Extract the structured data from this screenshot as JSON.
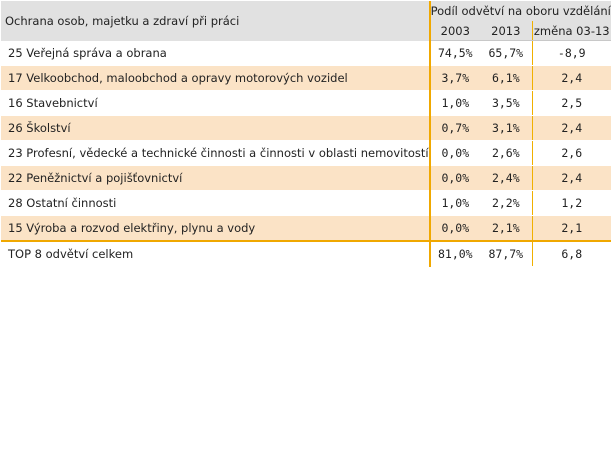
{
  "table": {
    "title": "Ochrana osob, majetku a zdraví při práci",
    "group_header": "Podíl odvětví na oboru vzdělání",
    "columns": [
      "2003",
      "2013",
      "změna 03-13"
    ],
    "rows": [
      {
        "label": "25 Veřejná správa a obrana",
        "v2003": "74,5%",
        "v2013": "65,7%",
        "change": "-8,9"
      },
      {
        "label": "17 Velkoobchod, maloobchod a opravy motorových vozidel",
        "v2003": "3,7%",
        "v2013": "6,1%",
        "change": "2,4"
      },
      {
        "label": "16 Stavebnictví",
        "v2003": "1,0%",
        "v2013": "3,5%",
        "change": "2,5"
      },
      {
        "label": "26 Školství",
        "v2003": "0,7%",
        "v2013": "3,1%",
        "change": "2,4"
      },
      {
        "label": "23 Profesní, vědecké a technické činnosti a činnosti v oblasti nemovitostí",
        "v2003": "0,0%",
        "v2013": "2,6%",
        "change": "2,6"
      },
      {
        "label": "22 Peněžnictví a pojišťovnictví",
        "v2003": "0,0%",
        "v2013": "2,4%",
        "change": "2,4"
      },
      {
        "label": "28 Ostatní činnosti",
        "v2003": "1,0%",
        "v2013": "2,2%",
        "change": "1,2"
      },
      {
        "label": "15 Výroba a rozvod elektřiny, plynu a vody",
        "v2003": "0,0%",
        "v2013": "2,1%",
        "change": "2,1"
      }
    ],
    "total": {
      "label": "TOP 8 odvětví celkem",
      "v2003": "81,0%",
      "v2013": "87,7%",
      "change": "6,8"
    }
  },
  "colors": {
    "header_bg": "#e1e1e1",
    "alt_row_bg": "#fbe3c6",
    "accent_line": "#f0a800"
  }
}
